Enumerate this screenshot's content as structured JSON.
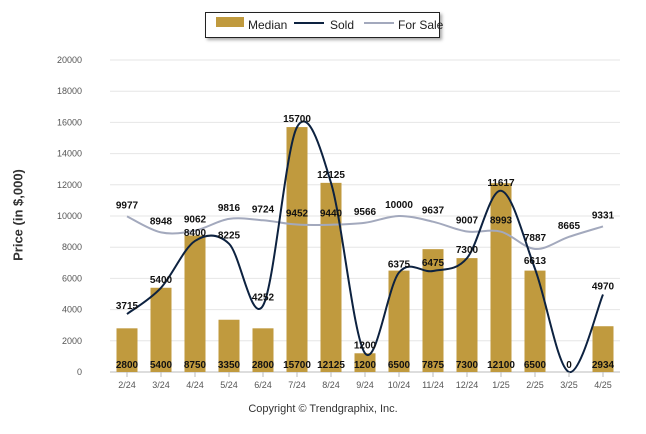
{
  "chart_data": {
    "type": "bar",
    "title": "",
    "ylabel": "Price (in $,000)",
    "xlabel": "",
    "ylim": [
      0,
      20000
    ],
    "yticks": [
      0,
      2000,
      4000,
      6000,
      8000,
      10000,
      12000,
      14000,
      16000,
      18000,
      20000
    ],
    "grid": true,
    "legend_position": "top-center",
    "categories": [
      "2/24",
      "3/24",
      "4/24",
      "5/24",
      "6/24",
      "7/24",
      "8/24",
      "9/24",
      "10/24",
      "11/24",
      "12/24",
      "1/25",
      "2/25",
      "3/25",
      "4/25"
    ],
    "series": [
      {
        "name": "Median",
        "kind": "bar",
        "color": "#c09a3e",
        "values": [
          2800,
          5400,
          8750,
          3350,
          2800,
          15700,
          12125,
          1200,
          6500,
          7875,
          7300,
          12100,
          6500,
          0,
          2934
        ]
      },
      {
        "name": "Sold",
        "kind": "line",
        "color": "#0d2240",
        "values": [
          3715,
          5400,
          8400,
          8225,
          4252,
          15700,
          12125,
          1200,
          6375,
          6475,
          7300,
          11617,
          6613,
          0,
          4970
        ]
      },
      {
        "name": "For Sale",
        "kind": "line",
        "color": "#a3a9bd",
        "values": [
          9977,
          8948,
          9062,
          9816,
          9724,
          9452,
          9440,
          9566,
          10000,
          9637,
          9007,
          8993,
          7887,
          8665,
          9331
        ]
      }
    ]
  },
  "copyright": "Copyright © Trendgraphix, Inc."
}
